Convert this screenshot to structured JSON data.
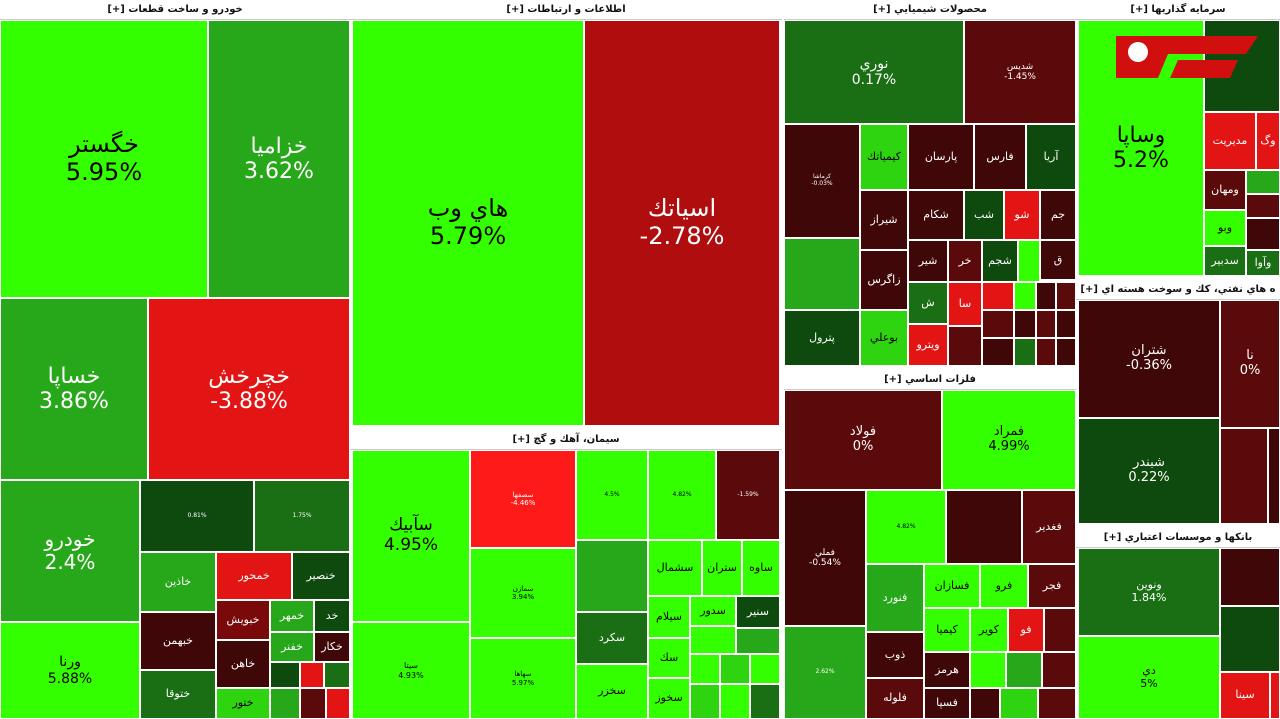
{
  "sectors": [
    {
      "title": "خودرو و ساخت قطعات [+]",
      "tiles": [
        {
          "name": "خگستر",
          "change": "5.95%"
        },
        {
          "name": "خزاميا",
          "change": "3.62%"
        },
        {
          "name": "خساپا",
          "change": "3.86%"
        },
        {
          "name": "خچرخش",
          "change": "-3.88%"
        },
        {
          "name": "خودرو",
          "change": "2.4%"
        },
        {
          "name": "ورنا",
          "change": "5.88%"
        },
        {
          "change": "0.81%"
        },
        {
          "change": "1.75%"
        },
        {
          "name": "خاذين"
        },
        {
          "name": "خمحور"
        },
        {
          "name": "خنصير"
        },
        {
          "name": "خبهمن"
        },
        {
          "name": "خبويش"
        },
        {
          "name": "خمهر"
        },
        {
          "name": "خد"
        },
        {
          "name": "خاهن"
        },
        {
          "name": "خفنر"
        },
        {
          "name": "خكار"
        },
        {
          "name": "ختوقا"
        },
        {
          "name": "ختور"
        }
      ]
    },
    {
      "title": "اطلاعات و ارتباطات [+]",
      "tiles": [
        {
          "name": "هاي وب",
          "change": "5.79%"
        },
        {
          "name": "اسياتك",
          "change": "-2.78%"
        }
      ]
    },
    {
      "title": "سيمان، آهك و گچ [+]",
      "tiles": [
        {
          "name": "سآبيك",
          "change": "4.95%"
        },
        {
          "name": "سيتا",
          "change": "4.93%"
        },
        {
          "name": "سصفها",
          "change": "-4.46%"
        },
        {
          "name": "سمازن",
          "change": "3.94%"
        },
        {
          "name": "سهاها",
          "change": "5.97%"
        },
        {
          "change": "4.5%"
        },
        {
          "change": "4.82%"
        },
        {
          "change": "-1.59%"
        },
        {
          "name": "سكرد"
        },
        {
          "name": "سخزر"
        },
        {
          "name": "سشمال"
        },
        {
          "name": "ستران"
        },
        {
          "name": "ساوه"
        },
        {
          "name": "سيلام"
        },
        {
          "name": "سدور"
        },
        {
          "name": "سنير"
        },
        {
          "name": "سك"
        },
        {
          "name": "سخوز"
        }
      ]
    },
    {
      "title": "محصولات شيميايي [+]",
      "tiles": [
        {
          "name": "نوري",
          "change": "0.17%"
        },
        {
          "name": "شديس",
          "change": "-1.45%"
        },
        {
          "name": "كرماشا",
          "change": "-0.03%"
        },
        {
          "name": "كيمياتك"
        },
        {
          "name": "پارسان"
        },
        {
          "name": "فارس"
        },
        {
          "name": "آريا"
        },
        {
          "name": "شيراز"
        },
        {
          "name": "شكام"
        },
        {
          "name": "شب"
        },
        {
          "name": "شو"
        },
        {
          "name": "جم"
        },
        {
          "name": "زاگرس"
        },
        {
          "name": "شير"
        },
        {
          "name": "خر"
        },
        {
          "name": "شجم"
        },
        {
          "name": "ق"
        },
        {
          "name": "پترول"
        },
        {
          "name": "ش"
        },
        {
          "name": "سا"
        },
        {
          "name": "بوعلي"
        },
        {
          "name": "ويترو"
        }
      ]
    },
    {
      "title": "فلزات اساسي [+]",
      "tiles": [
        {
          "name": "فولاد",
          "change": "0%"
        },
        {
          "name": "فمراد",
          "change": "4.99%"
        },
        {
          "name": "فملي",
          "change": "-0.54%"
        },
        {
          "change": "4.82%"
        },
        {
          "name": "فغدير"
        },
        {
          "name": "فنورد"
        },
        {
          "name": "فسازان"
        },
        {
          "name": "فرو"
        },
        {
          "name": "فجر"
        },
        {
          "name": "كيميا"
        },
        {
          "name": "كوير"
        },
        {
          "name": "فو"
        },
        {
          "change": "2.62%"
        },
        {
          "name": "ذوب"
        },
        {
          "name": "هرمز"
        },
        {
          "name": "فلوله"
        },
        {
          "name": "فسپا"
        }
      ]
    },
    {
      "title": "سرمايه گذاريها [+]",
      "tiles": [
        {
          "name": "وساپا",
          "change": "5.2%"
        },
        {
          "name": "مديريت"
        },
        {
          "name": "وگ"
        },
        {
          "name": "ومهان"
        },
        {
          "name": "وبو"
        },
        {
          "name": "سدبير"
        },
        {
          "name": "وآوا"
        }
      ]
    },
    {
      "title": "ه هاي نفتي، كك و سوخت هسته اي [+]",
      "tiles": [
        {
          "name": "شتران",
          "change": "-0.36%"
        },
        {
          "name": "شبندر",
          "change": "0.22%"
        },
        {
          "name": "نا",
          "change": "0%"
        }
      ]
    },
    {
      "title": "بانكها و موسسات اعتباري [+]",
      "tiles": [
        {
          "name": "ونوين",
          "change": "1.84%"
        },
        {
          "name": "دي",
          "change": "5%"
        },
        {
          "name": "سينا"
        }
      ]
    }
  ]
}
